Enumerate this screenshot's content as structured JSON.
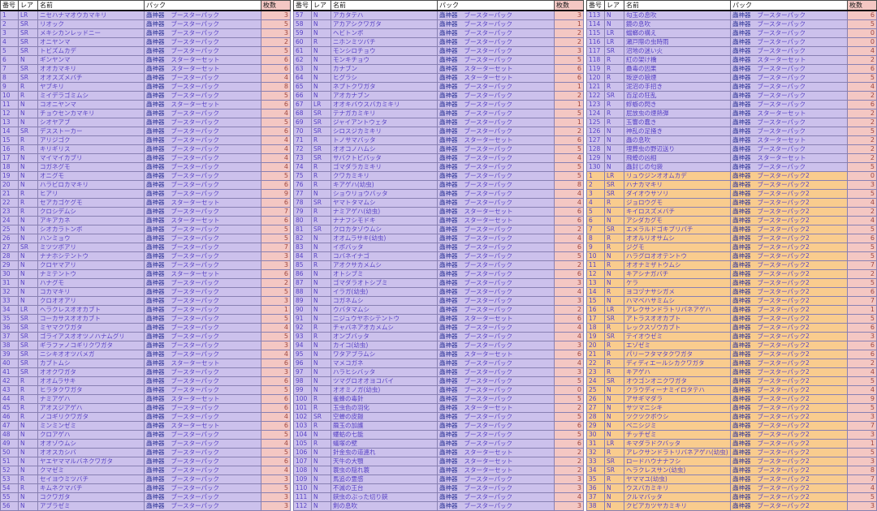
{
  "app": {
    "description": "card collection checklist spreadsheet"
  },
  "columns": {
    "number": "番号",
    "rarity": "レア",
    "name": "名前",
    "pack": "パック",
    "qty": "枚数"
  },
  "brand": "蟲神器",
  "packs": {
    "B": "ブースターパック",
    "S": "スターターセット",
    "B2": "ブースターパック2"
  },
  "colors": {
    "row_purple": "#CCC1EC",
    "row_orange": "#F9CC8E",
    "qty_column": "#F4C7C3",
    "text_purple": "#5843C6",
    "text_brand": "#2F3699",
    "text_qty": "#A04840",
    "grid": "#8880B2"
  },
  "tables": [
    {
      "rows": [
        [
          1,
          "LR",
          "ニセハナマオウカマキリ",
          "B",
          3
        ],
        [
          2,
          "SR",
          "リオック",
          "B",
          5
        ],
        [
          3,
          "SR",
          "メキシカンレッドニー",
          "B",
          3
        ],
        [
          4,
          "SR",
          "オニヤンマ",
          "B",
          2
        ],
        [
          5,
          "SR",
          "トビズムカデ",
          "B",
          5
        ],
        [
          6,
          "N",
          "ギンヤンマ",
          "S",
          6
        ],
        [
          7,
          "SR",
          "オオカマキリ",
          "S",
          6
        ],
        [
          8,
          "SR",
          "オオスズメバチ",
          "B",
          4
        ],
        [
          9,
          "R",
          "ヤブキリ",
          "B",
          8
        ],
        [
          10,
          "R",
          "ミイデラゴミムシ",
          "B",
          5
        ],
        [
          11,
          "N",
          "コオニヤンマ",
          "S",
          6
        ],
        [
          12,
          "N",
          "チョウセンカマキリ",
          "B",
          4
        ],
        [
          13,
          "N",
          "シオヤアブ",
          "B",
          5
        ],
        [
          14,
          "SR",
          "デスストーカー",
          "B",
          6
        ],
        [
          15,
          "R",
          "アリジゴク",
          "B",
          4
        ],
        [
          16,
          "R",
          "キリギリス",
          "B",
          4
        ],
        [
          17,
          "N",
          "マイマイカブリ",
          "B",
          4
        ],
        [
          18,
          "N",
          "コガネグモ",
          "B",
          4
        ],
        [
          19,
          "N",
          "オニグモ",
          "B",
          5
        ],
        [
          20,
          "N",
          "ハラビロカマキリ",
          "B",
          6
        ],
        [
          21,
          "R",
          "ヒアリ",
          "B",
          9
        ],
        [
          22,
          "R",
          "セアカゴケグモ",
          "S",
          6
        ],
        [
          23,
          "R",
          "クロシデムシ",
          "B",
          7
        ],
        [
          24,
          "N",
          "アキアカネ",
          "S",
          6
        ],
        [
          25,
          "N",
          "シオカラトンボ",
          "B",
          5
        ],
        [
          26,
          "N",
          "ハンミョウ",
          "B",
          5
        ],
        [
          27,
          "SR",
          "ミツツボアリ",
          "B",
          7
        ],
        [
          28,
          "N",
          "ナナホシテントウ",
          "B",
          3
        ],
        [
          29,
          "N",
          "クロヤマアリ",
          "B",
          3
        ],
        [
          30,
          "N",
          "ナミテントウ",
          "S",
          6
        ],
        [
          31,
          "N",
          "ハナグモ",
          "B",
          2
        ],
        [
          32,
          "N",
          "コカマキリ",
          "B",
          5
        ],
        [
          33,
          "N",
          "クロオオアリ",
          "B",
          3
        ],
        [
          34,
          "LR",
          "ヘラクレスオオカブト",
          "B",
          1
        ],
        [
          35,
          "SR",
          "コーカサスオオカブト",
          "B",
          5
        ],
        [
          36,
          "SR",
          "ミヤマクワガタ",
          "B",
          4
        ],
        [
          37,
          "SR",
          "ゴライアスオオツノハナムグリ",
          "B",
          5
        ],
        [
          38,
          "SR",
          "ギラファノコギリクワガタ",
          "B",
          3
        ],
        [
          39,
          "SR",
          "ニシキオオツバメガ",
          "B",
          4
        ],
        [
          40,
          "SR",
          "カブトムシ",
          "S",
          6
        ],
        [
          41,
          "SR",
          "オオクワガタ",
          "B",
          3
        ],
        [
          42,
          "R",
          "オオムラサキ",
          "B",
          6
        ],
        [
          43,
          "R",
          "ヒラタクワガタ",
          "B",
          5
        ],
        [
          44,
          "R",
          "ナミアゲハ",
          "S",
          6
        ],
        [
          45,
          "R",
          "アオスジアゲハ",
          "B",
          6
        ],
        [
          46,
          "R",
          "ノコギリクワガタ",
          "B",
          4
        ],
        [
          47,
          "N",
          "ミンミンゼミ",
          "S",
          6
        ],
        [
          48,
          "N",
          "クロアゲハ",
          "B",
          5
        ],
        [
          49,
          "N",
          "オオゾウムシ",
          "B",
          4
        ],
        [
          50,
          "N",
          "オオスカシバ",
          "B",
          5
        ],
        [
          51,
          "N",
          "ヤエヤママルバネクワガタ",
          "B",
          6
        ],
        [
          52,
          "N",
          "クマゼミ",
          "B",
          4
        ],
        [
          53,
          "R",
          "セイヨウミツバチ",
          "B",
          3
        ],
        [
          54,
          "R",
          "キムネクマバチ",
          "B",
          5
        ],
        [
          55,
          "N",
          "コクワガタ",
          "B",
          3
        ],
        [
          56,
          "N",
          "アブラゼミ",
          "B",
          3
        ]
      ]
    },
    {
      "rows": [
        [
          57,
          "N",
          "アカタテハ",
          "B",
          3
        ],
        [
          58,
          "N",
          "アカアシクワガタ",
          "B",
          1
        ],
        [
          59,
          "N",
          "ヘビトンボ",
          "B",
          2
        ],
        [
          60,
          "R",
          "ニホンミツバチ",
          "B",
          2
        ],
        [
          61,
          "N",
          "モンシロチョウ",
          "B",
          3
        ],
        [
          62,
          "N",
          "モンキチョウ",
          "B",
          5
        ],
        [
          63,
          "N",
          "カナブン",
          "S",
          6
        ],
        [
          64,
          "N",
          "ヒグラシ",
          "S",
          6
        ],
        [
          65,
          "N",
          "ネプトクワガタ",
          "B",
          1
        ],
        [
          66,
          "N",
          "アオカナブン",
          "B",
          2
        ],
        [
          67,
          "LR",
          "オオキバウスバカミキリ",
          "B",
          1
        ],
        [
          68,
          "SR",
          "テナガカミキリ",
          "B",
          5
        ],
        [
          69,
          "SR",
          "ジャイアントウェタ",
          "B",
          1
        ],
        [
          70,
          "SR",
          "シロスジカミキリ",
          "B",
          2
        ],
        [
          71,
          "R",
          "トノサマバッタ",
          "S",
          6
        ],
        [
          72,
          "SR",
          "オオコノハムシ",
          "B",
          5
        ],
        [
          73,
          "SR",
          "サバクトビバッタ",
          "B",
          4
        ],
        [
          74,
          "R",
          "ゴマダラカミキリ",
          "B",
          5
        ],
        [
          75,
          "R",
          "クワカミキリ",
          "B",
          5
        ],
        [
          76,
          "R",
          "キアゲハ(幼虫)",
          "B",
          8
        ],
        [
          77,
          "N",
          "ショウリョウバッタ",
          "B",
          4
        ],
        [
          78,
          "SR",
          "ヤマトタマムシ",
          "B",
          4
        ],
        [
          79,
          "R",
          "ナミアゲハ(幼虫)",
          "S",
          6
        ],
        [
          80,
          "R",
          "ナナフシモドキ",
          "S",
          6
        ],
        [
          81,
          "SR",
          "クロカタゾウムシ",
          "B",
          2
        ],
        [
          82,
          "N",
          "オオムラサキ(幼虫)",
          "B",
          4
        ],
        [
          83,
          "N",
          "イボバッタ",
          "B",
          6
        ],
        [
          84,
          "R",
          "コバネイナゴ",
          "B",
          5
        ],
        [
          85,
          "R",
          "アオクサカメムシ",
          "B",
          2
        ],
        [
          86,
          "N",
          "オトシブミ",
          "B",
          6
        ],
        [
          87,
          "N",
          "ゴマダラオトシブミ",
          "B",
          3
        ],
        [
          88,
          "N",
          "イラガ(幼虫)",
          "B",
          4
        ],
        [
          89,
          "N",
          "コガネムシ",
          "B",
          3
        ],
        [
          90,
          "N",
          "ウバタマムシ",
          "B",
          2
        ],
        [
          91,
          "N",
          "ニジュウヤホシテントウ",
          "S",
          6
        ],
        [
          92,
          "R",
          "チャバネアオカメムシ",
          "B",
          4
        ],
        [
          93,
          "R",
          "オンブバッタ",
          "B",
          4
        ],
        [
          94,
          "N",
          "カイコ(幼虫)",
          "B",
          3
        ],
        [
          95,
          "N",
          "ワタアブラムシ",
          "S",
          6
        ],
        [
          96,
          "N",
          "マメコガネ",
          "B",
          4
        ],
        [
          97,
          "N",
          "ハラヒシバッタ",
          "B",
          3
        ],
        [
          98,
          "N",
          "ツマグロオオヨコバイ",
          "B",
          5
        ],
        [
          99,
          "N",
          "オオミノガ(幼虫)",
          "B",
          0
        ],
        [
          100,
          "R",
          "雀蜂の毒針",
          "B",
          5
        ],
        [
          101,
          "R",
          "玉虫色の羽化",
          "S",
          2
        ],
        [
          102,
          "SR",
          "空蝉の皮鎧",
          "B",
          5
        ],
        [
          103,
          "R",
          "繭玉の加護",
          "B",
          6
        ],
        [
          104,
          "N",
          "螻蛄の七能",
          "B",
          5
        ],
        [
          105,
          "R",
          "蟻塚の壁",
          "B",
          6
        ],
        [
          106,
          "N",
          "針金虫の道連れ",
          "S",
          2
        ],
        [
          107,
          "N",
          "天牛の大顎",
          "S",
          2
        ],
        [
          108,
          "N",
          "蓑虫の隠れ蓑",
          "S",
          2
        ],
        [
          109,
          "N",
          "馬追の霊感",
          "B",
          3
        ],
        [
          110,
          "N",
          "不滅の王台",
          "B",
          3
        ],
        [
          111,
          "N",
          "鋏虫のぶった切り鋏",
          "B",
          4
        ],
        [
          112,
          "N",
          "剣の息吹",
          "B",
          3
        ]
      ]
    },
    {
      "rows": [
        [
          113,
          "N",
          "勾玉の息吹",
          "B",
          6
        ],
        [
          114,
          "N",
          "鏡の息吹",
          "B",
          5
        ],
        [
          115,
          "LR",
          "蟷螂の構え",
          "B",
          0
        ],
        [
          116,
          "LR",
          "瀬戸際の虫時雨",
          "B",
          0
        ],
        [
          117,
          "SR",
          "沼地の迷い火",
          "B",
          4
        ],
        [
          118,
          "R",
          "紅の架け橋",
          "S",
          2
        ],
        [
          119,
          "R",
          "蠱毒の因果",
          "B",
          6
        ],
        [
          120,
          "R",
          "叛逆の狼煙",
          "B",
          5
        ],
        [
          121,
          "R",
          "泥沼の手招き",
          "B",
          4
        ],
        [
          122,
          "SR",
          "百足の狂乱",
          "B",
          2
        ],
        [
          123,
          "R",
          "蜉蝣の閃き",
          "B",
          6
        ],
        [
          124,
          "R",
          "屁放虫の煙熱弾",
          "S",
          2
        ],
        [
          125,
          "R",
          "玉響の蠢き",
          "B",
          2
        ],
        [
          126,
          "N",
          "神乱の足掻き",
          "B",
          5
        ],
        [
          127,
          "N",
          "蟲の息吹",
          "S",
          2
        ],
        [
          128,
          "N",
          "埋葬虫の野辺送り",
          "B",
          2
        ],
        [
          129,
          "N",
          "飛蝗の凶相",
          "S",
          2
        ],
        [
          130,
          "N",
          "蟲封じの匂袋",
          "B",
          5
        ],
        [
          1,
          "LR",
          "リュウジンオオムカデ",
          "B2",
          0,
          "o"
        ],
        [
          2,
          "SR",
          "ハナカマキリ",
          "B2",
          3,
          "o"
        ],
        [
          3,
          "SR",
          "ダイオウサソリ",
          "B2",
          5,
          "o"
        ],
        [
          4,
          "R",
          "ジョロウグモ",
          "B2",
          4,
          "o"
        ],
        [
          5,
          "N",
          "キイロスズメバチ",
          "B2",
          2,
          "o"
        ],
        [
          6,
          "N",
          "アシダカグモ",
          "B2",
          4,
          "o"
        ],
        [
          7,
          "SR",
          "エメラルドゴキブリバチ",
          "B2",
          5,
          "o"
        ],
        [
          8,
          "R",
          "オオルリオサムシ",
          "B2",
          6,
          "o"
        ],
        [
          9,
          "R",
          "ジグモ",
          "B2",
          5,
          "o"
        ],
        [
          10,
          "N",
          "ハラグロオオテントウ",
          "B2",
          5,
          "o"
        ],
        [
          11,
          "R",
          "オオナミザトウムシ",
          "B2",
          7,
          "o"
        ],
        [
          12,
          "N",
          "キアシナガバチ",
          "B2",
          2,
          "o"
        ],
        [
          13,
          "N",
          "ケラ",
          "B2",
          5,
          "o"
        ],
        [
          14,
          "R",
          "ヨコヅナサシガメ",
          "B2",
          6,
          "o"
        ],
        [
          15,
          "N",
          "ハマベハサミムシ",
          "B2",
          7,
          "o"
        ],
        [
          16,
          "LR",
          "アレクサンドラトリバネアゲハ",
          "B2",
          1,
          "o"
        ],
        [
          17,
          "SR",
          "アトラスオオカブト",
          "B2",
          5,
          "o"
        ],
        [
          18,
          "R",
          "レックスゾウカブト",
          "B2",
          6,
          "o"
        ],
        [
          19,
          "SR",
          "テイオウゼミ",
          "B2",
          3,
          "o"
        ],
        [
          20,
          "R",
          "エゾゼミ",
          "B2",
          6,
          "o"
        ],
        [
          21,
          "R",
          "パリーフタマタクワガタ",
          "B2",
          6,
          "o"
        ],
        [
          22,
          "R",
          "ディディエールシカクワガタ",
          "B2",
          2,
          "o"
        ],
        [
          23,
          "R",
          "キアゲハ",
          "B2",
          4,
          "o"
        ],
        [
          24,
          "SR",
          "オウゴンオニクワガタ",
          "B2",
          5,
          "o"
        ],
        [
          25,
          "N",
          "クラウディーナミイロタテハ",
          "B2",
          4,
          "o"
        ],
        [
          26,
          "N",
          "アサギマダラ",
          "B2",
          9,
          "o"
        ],
        [
          27,
          "N",
          "サツマニシキ",
          "B2",
          5,
          "o"
        ],
        [
          28,
          "N",
          "ツクツクボウシ",
          "B2",
          3,
          "o"
        ],
        [
          29,
          "N",
          "ベニシジミ",
          "B2",
          7,
          "o"
        ],
        [
          30,
          "N",
          "チッチゼミ",
          "B2",
          3,
          "o"
        ],
        [
          31,
          "LR",
          "キマダラドクバッタ",
          "B2",
          1,
          "o"
        ],
        [
          32,
          "R",
          "アレクサンドラトリバネアゲハ(幼虫)",
          "B2",
          5,
          "o"
        ],
        [
          33,
          "SR",
          "ロードハウナナフシ",
          "B2",
          3,
          "o"
        ],
        [
          34,
          "SR",
          "ヘラクレスサン(幼虫)",
          "B2",
          8,
          "o"
        ],
        [
          35,
          "R",
          "ヤママユ(幼虫)",
          "B2",
          7,
          "o"
        ],
        [
          36,
          "N",
          "ウスバカミキリ",
          "B2",
          4,
          "o"
        ],
        [
          37,
          "N",
          "クルマバッタ",
          "B2",
          5,
          "o"
        ],
        [
          38,
          "N",
          "クビアカツヤカミキリ",
          "B2",
          3,
          "o"
        ]
      ]
    }
  ]
}
